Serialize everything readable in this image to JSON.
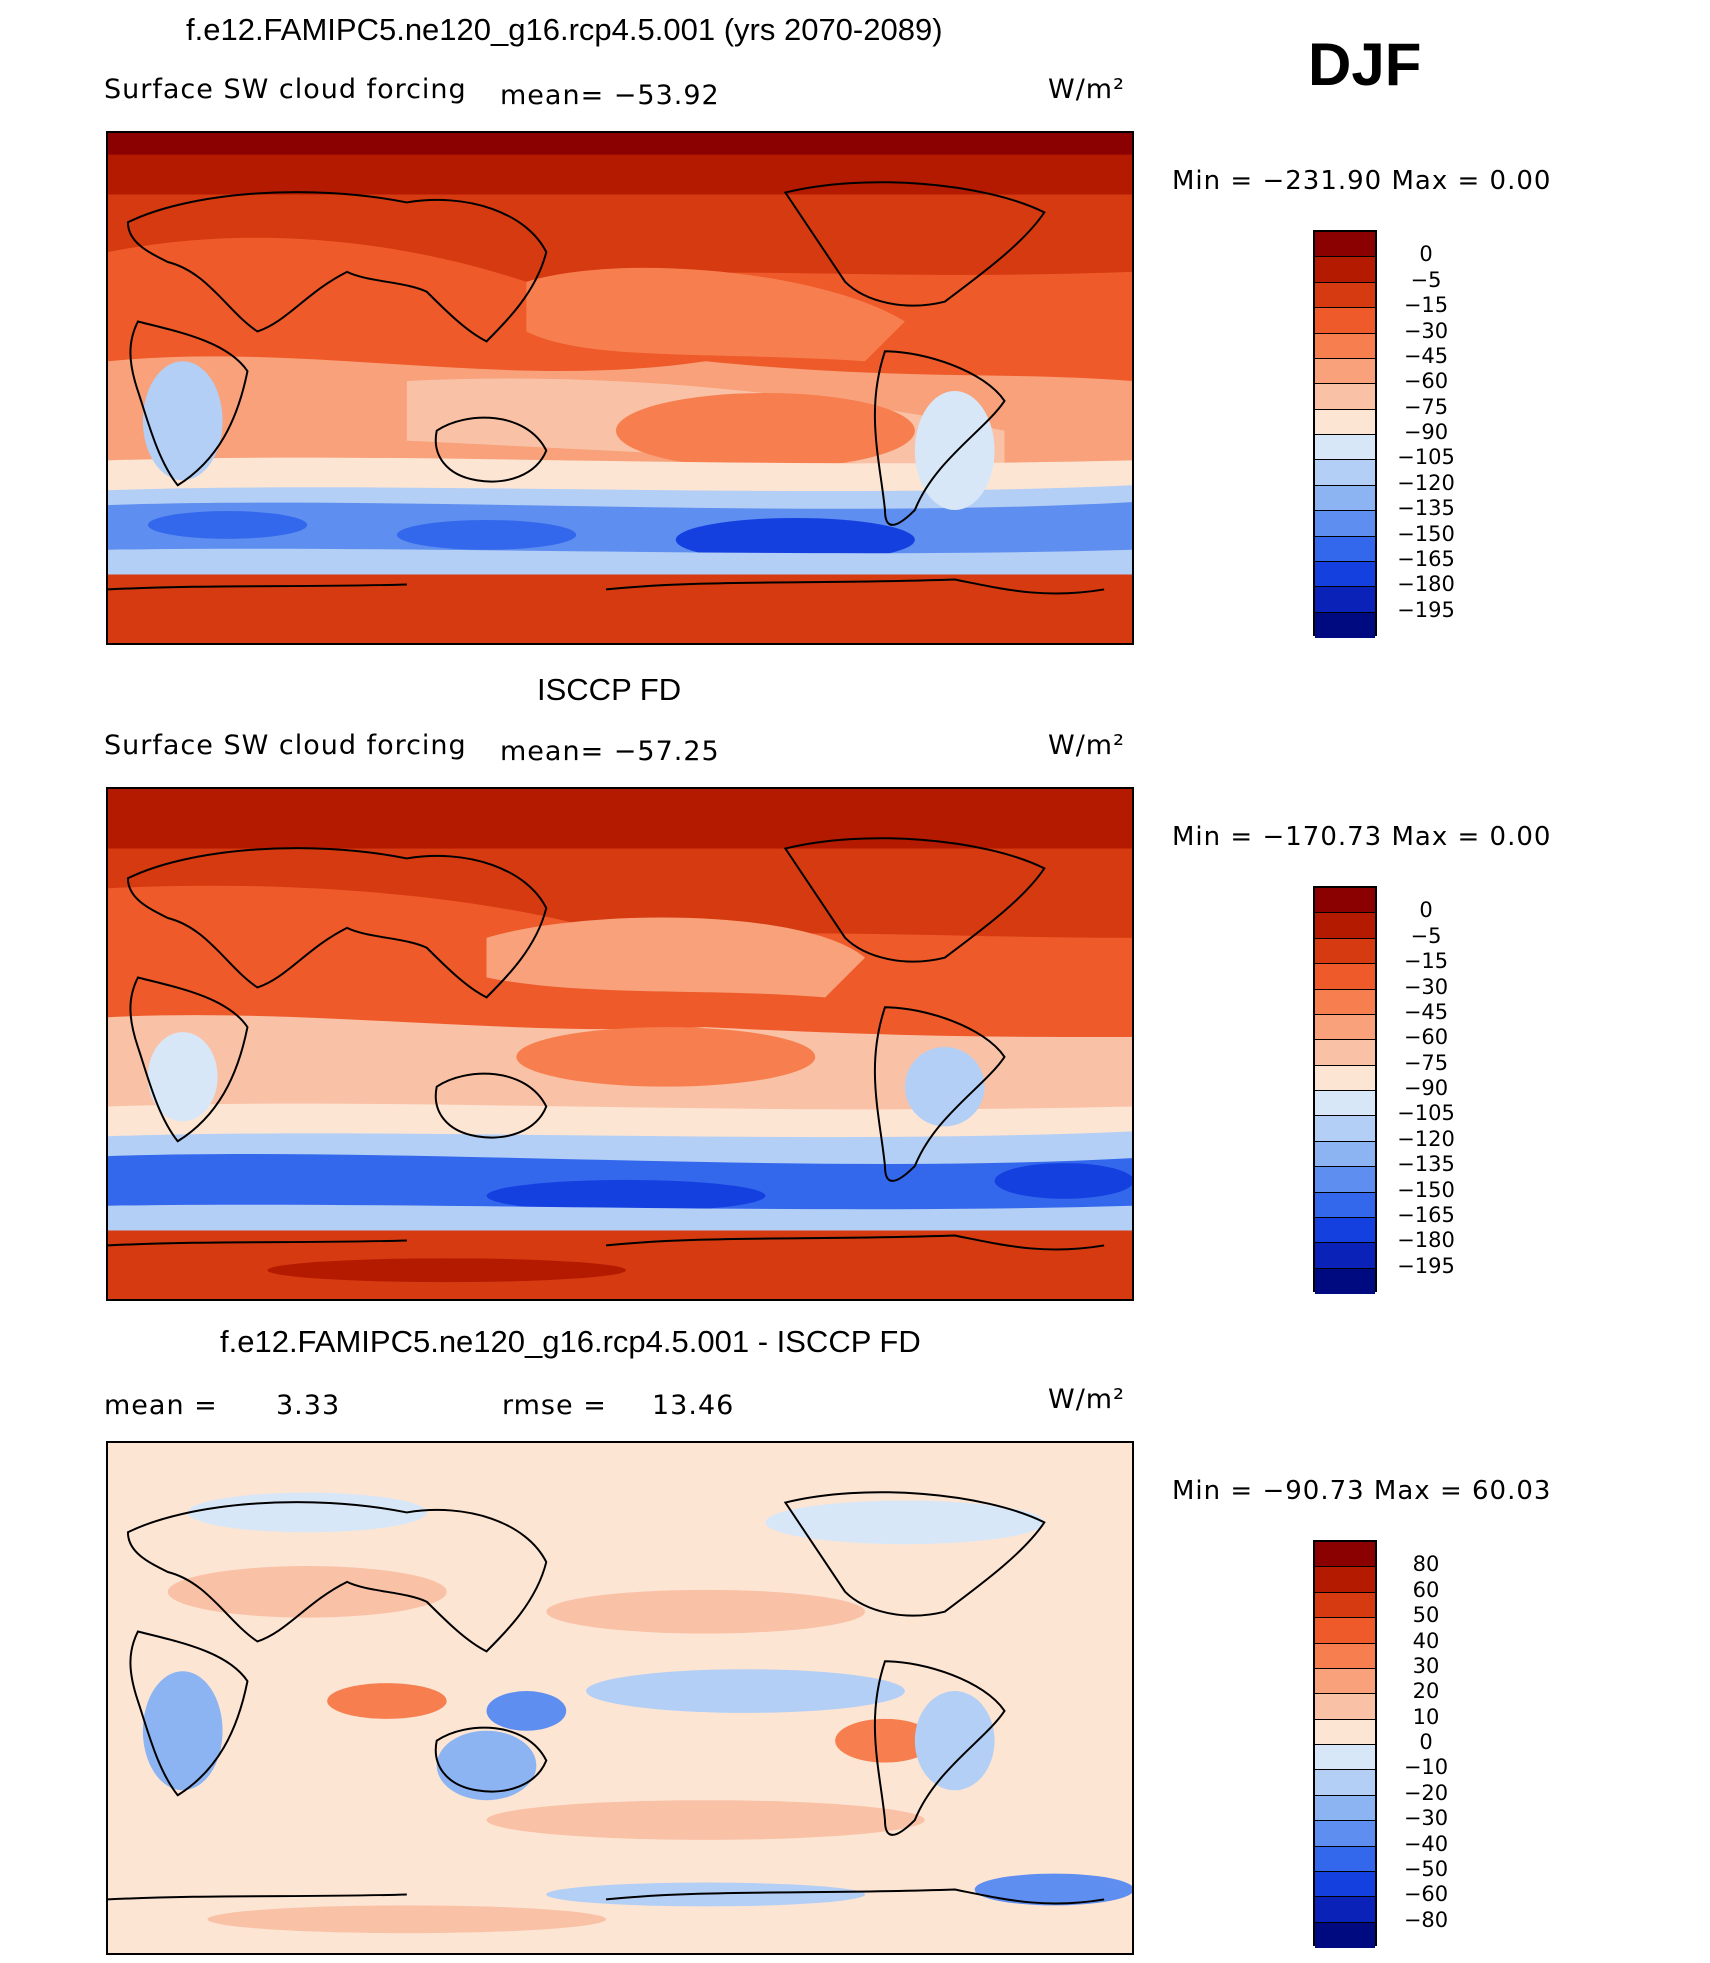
{
  "figure": {
    "season": "DJF",
    "panels": [
      {
        "title": "f.e12.FAMIPC5.ne120_g16.rcp4.5.001 (yrs 2070-2089)",
        "left_label": "Surface SW cloud forcing",
        "mean_label": "mean= −53.92",
        "units": "W/m²",
        "minmax": "Min  =  −231.90  Max  =     0.00",
        "colorbar_levels": [
          "0",
          "−5",
          "−15",
          "−30",
          "−45",
          "−60",
          "−75",
          "−90",
          "−105",
          "−120",
          "−135",
          "−150",
          "−165",
          "−180",
          "−195"
        ]
      },
      {
        "title": "ISCCP FD",
        "left_label": "Surface SW cloud forcing",
        "mean_label": "mean= −57.25",
        "units": "W/m²",
        "minmax": "Min  =  −170.73  Max  =     0.00",
        "colorbar_levels": [
          "0",
          "−5",
          "−15",
          "−30",
          "−45",
          "−60",
          "−75",
          "−90",
          "−105",
          "−120",
          "−135",
          "−150",
          "−165",
          "−180",
          "−195"
        ]
      },
      {
        "title": "f.e12.FAMIPC5.ne120_g16.rcp4.5.001 - ISCCP FD",
        "left_label": "mean  =",
        "mean_value": "3.33",
        "rmse_label": "rmse  =",
        "rmse_value": "13.46",
        "units": "W/m²",
        "minmax": "Min  =  −90.73  Max  =   60.03",
        "colorbar_levels": [
          "80",
          "60",
          "50",
          "40",
          "30",
          "20",
          "10",
          "0",
          "−10",
          "−20",
          "−30",
          "−40",
          "−50",
          "−60",
          "−80"
        ]
      }
    ],
    "colors": {
      "scale": [
        "#8b0000",
        "#b31a00",
        "#d63a10",
        "#ee5a2a",
        "#f77f4f",
        "#f8a17a",
        "#f9c2a6",
        "#fde5d4",
        "#d8e7f8",
        "#b3cff5",
        "#8cb3f2",
        "#5e8ef0",
        "#3468ec",
        "#1540e0",
        "#0a22b8",
        "#000a80"
      ]
    }
  }
}
